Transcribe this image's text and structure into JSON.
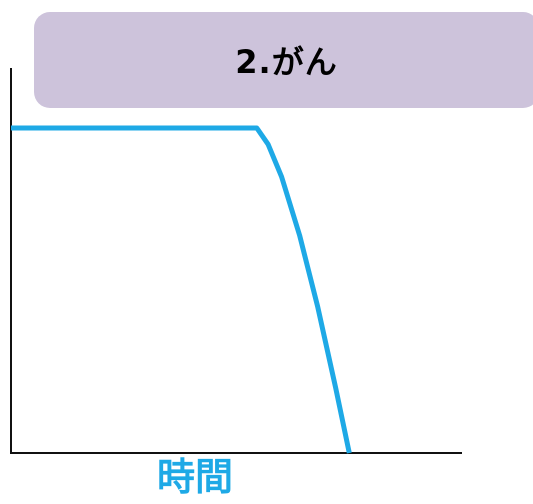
{
  "title": "2.がん",
  "colors": {
    "title_box": "#cdc3db",
    "series_line": "#1ea9e6",
    "axis": "#111111",
    "xlabel": "#1ea9e6"
  },
  "chart_data": {
    "type": "line",
    "title": "2.がん",
    "xlabel": "時間",
    "ylabel": "",
    "xlim": [
      0,
      100
    ],
    "ylim": [
      0,
      100
    ],
    "grid": false,
    "legend": "none",
    "series": [
      {
        "x": [
          0,
          54.5,
          57,
          60,
          64,
          68,
          72,
          75
        ],
        "y": [
          100,
          100,
          95,
          85,
          67,
          45,
          20,
          0
        ]
      }
    ]
  }
}
